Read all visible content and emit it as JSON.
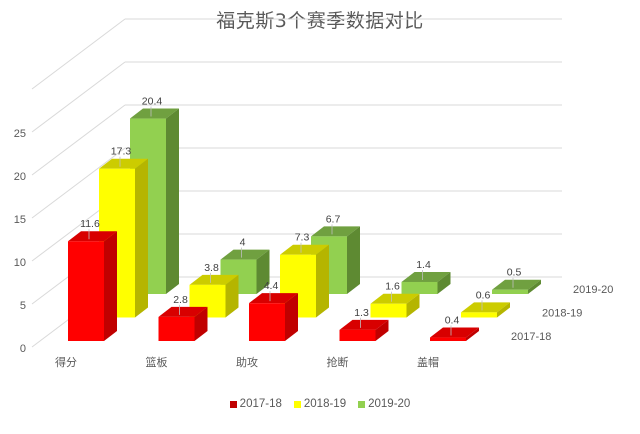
{
  "chart_data": {
    "type": "bar",
    "subtype": "3d-column",
    "title": "福克斯3个赛季数据对比",
    "xlabel": "",
    "ylabel": "",
    "categories": [
      "得分",
      "篮板",
      "助攻",
      "抢断",
      "盖帽"
    ],
    "series": [
      {
        "name": "2017-18",
        "values": [
          11.6,
          2.8,
          4.4,
          1.3,
          0.4
        ],
        "color": "#FF0000",
        "side": "#C00000",
        "top": "#D80000"
      },
      {
        "name": "2018-19",
        "values": [
          17.3,
          3.8,
          7.3,
          1.6,
          0.6
        ],
        "color": "#FFFF00",
        "side": "#B5B500",
        "top": "#CCCC00"
      },
      {
        "name": "2019-20",
        "values": [
          20.4,
          4,
          6.7,
          1.4,
          0.5
        ],
        "color": "#92D050",
        "side": "#5E8A32",
        "top": "#70A040"
      }
    ],
    "yticks": [
      "0",
      "5",
      "10",
      "15",
      "20",
      "25"
    ],
    "ylim": [
      0,
      30
    ],
    "grid": true,
    "legend_position": "bottom"
  },
  "legend": [
    {
      "label": "2017-18",
      "color": "#C00000"
    },
    {
      "label": "2018-19",
      "color": "#FFFF00"
    },
    {
      "label": "2019-20",
      "color": "#92D050"
    }
  ]
}
